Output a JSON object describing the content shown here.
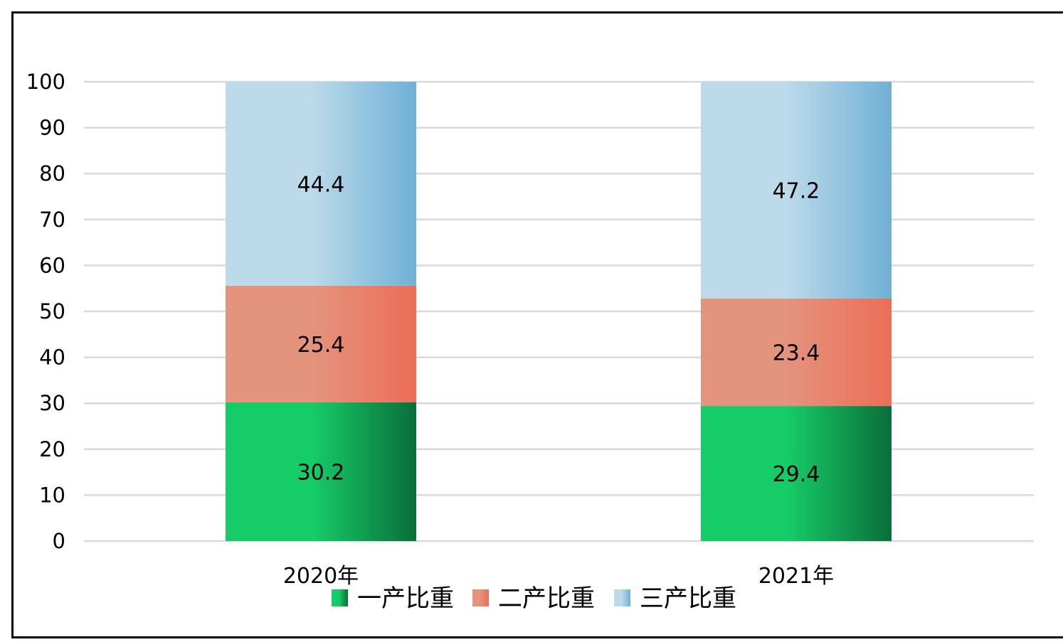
{
  "chart_data": {
    "type": "bar",
    "stacked": true,
    "categories": [
      "2020年",
      "2021年"
    ],
    "series": [
      {
        "name": "一产比重",
        "values": [
          30.2,
          29.4
        ],
        "color_light": "#16cc68",
        "color_dark": "#0a6e3a"
      },
      {
        "name": "二产比重",
        "values": [
          25.4,
          23.4
        ],
        "color_light": "#e4937d",
        "color_dark": "#ec6e57"
      },
      {
        "name": "三产比重",
        "values": [
          44.4,
          47.2
        ],
        "color_light": "#bcdaea",
        "color_dark": "#70b0d6"
      }
    ],
    "ylim": [
      0,
      100
    ],
    "yticks": [
      "0",
      "10",
      "20",
      "30",
      "40",
      "50",
      "60",
      "70",
      "80",
      "90",
      "100"
    ],
    "title": "",
    "xlabel": "",
    "ylabel": "",
    "grid": true,
    "legend_position": "bottom"
  }
}
